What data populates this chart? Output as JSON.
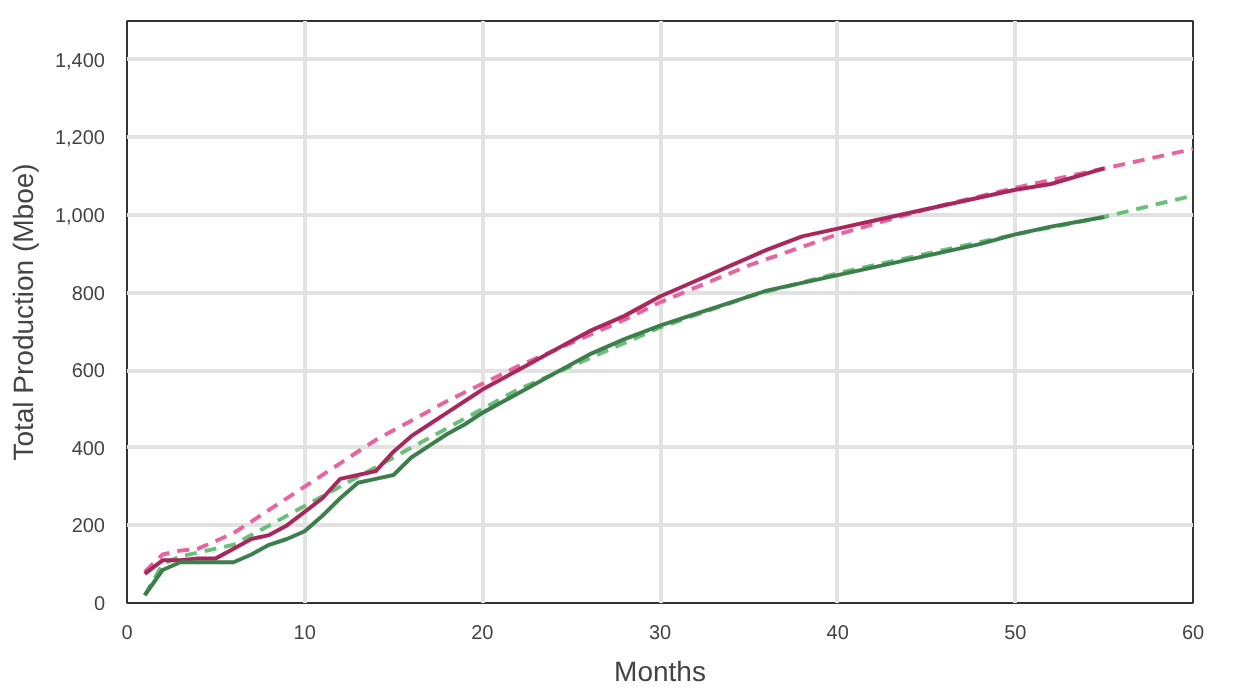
{
  "chart_data": {
    "type": "line",
    "xlabel": "Months",
    "ylabel": "Total Production (Mboe)",
    "xlim": [
      0,
      60
    ],
    "ylim": [
      0,
      1500
    ],
    "xticks": [
      0,
      10,
      20,
      30,
      40,
      50,
      60
    ],
    "yticks": [
      0,
      200,
      400,
      {
        "value": 600,
        "label": "600"
      },
      {
        "value": 800,
        "label": "800"
      },
      {
        "value": 1000,
        "label": "1,000"
      },
      {
        "value": 1200,
        "label": "1,200"
      },
      {
        "value": 1400,
        "label": "1,400"
      }
    ],
    "grid": true,
    "series": [
      {
        "color": "#e8649e",
        "line_style": "dashed",
        "x": [
          1,
          2,
          3,
          4,
          6,
          8,
          10,
          12,
          14,
          16,
          18,
          20,
          22,
          24,
          26,
          28,
          30,
          35,
          40,
          45,
          50,
          55,
          60
        ],
        "values": [
          80,
          125,
          135,
          140,
          180,
          240,
          300,
          360,
          420,
          470,
          520,
          565,
          610,
          650,
          690,
          730,
          775,
          870,
          950,
          1015,
          1070,
          1120,
          1170
        ]
      },
      {
        "color": "#6cbf7a",
        "line_style": "dashed",
        "x": [
          1,
          2,
          3,
          4,
          6,
          8,
          10,
          12,
          14,
          16,
          18,
          20,
          22,
          24,
          26,
          28,
          30,
          35,
          40,
          45,
          50,
          55,
          60
        ],
        "values": [
          20,
          100,
          120,
          130,
          150,
          200,
          250,
          300,
          350,
          400,
          450,
          500,
          550,
          590,
          630,
          670,
          710,
          790,
          850,
          900,
          950,
          995,
          1050
        ]
      },
      {
        "color": "#a8285e",
        "line_style": "solid",
        "x": [
          1,
          2,
          3,
          4,
          5,
          6,
          7,
          8,
          9,
          10,
          11,
          12,
          13,
          14,
          15,
          16,
          17,
          18,
          19,
          20,
          22,
          24,
          26,
          28,
          30,
          32,
          34,
          36,
          38,
          40,
          42,
          44,
          46,
          48,
          50,
          52,
          55
        ],
        "values": [
          75,
          110,
          110,
          115,
          115,
          140,
          165,
          175,
          200,
          235,
          270,
          320,
          330,
          340,
          390,
          430,
          460,
          490,
          520,
          550,
          600,
          650,
          700,
          740,
          790,
          830,
          870,
          910,
          945,
          965,
          985,
          1005,
          1025,
          1045,
          1065,
          1080,
          1120
        ]
      },
      {
        "color": "#3d7f4c",
        "line_style": "solid",
        "x": [
          1,
          2,
          3,
          4,
          5,
          6,
          7,
          8,
          9,
          10,
          11,
          12,
          13,
          14,
          15,
          16,
          17,
          18,
          19,
          20,
          22,
          24,
          26,
          28,
          30,
          32,
          34,
          36,
          38,
          40,
          42,
          44,
          46,
          48,
          50,
          52,
          55
        ],
        "values": [
          20,
          85,
          105,
          105,
          105,
          105,
          125,
          150,
          165,
          185,
          225,
          270,
          310,
          320,
          330,
          375,
          405,
          435,
          460,
          490,
          540,
          590,
          640,
          680,
          715,
          745,
          775,
          805,
          825,
          845,
          865,
          885,
          905,
          925,
          950,
          970,
          995
        ]
      }
    ]
  }
}
